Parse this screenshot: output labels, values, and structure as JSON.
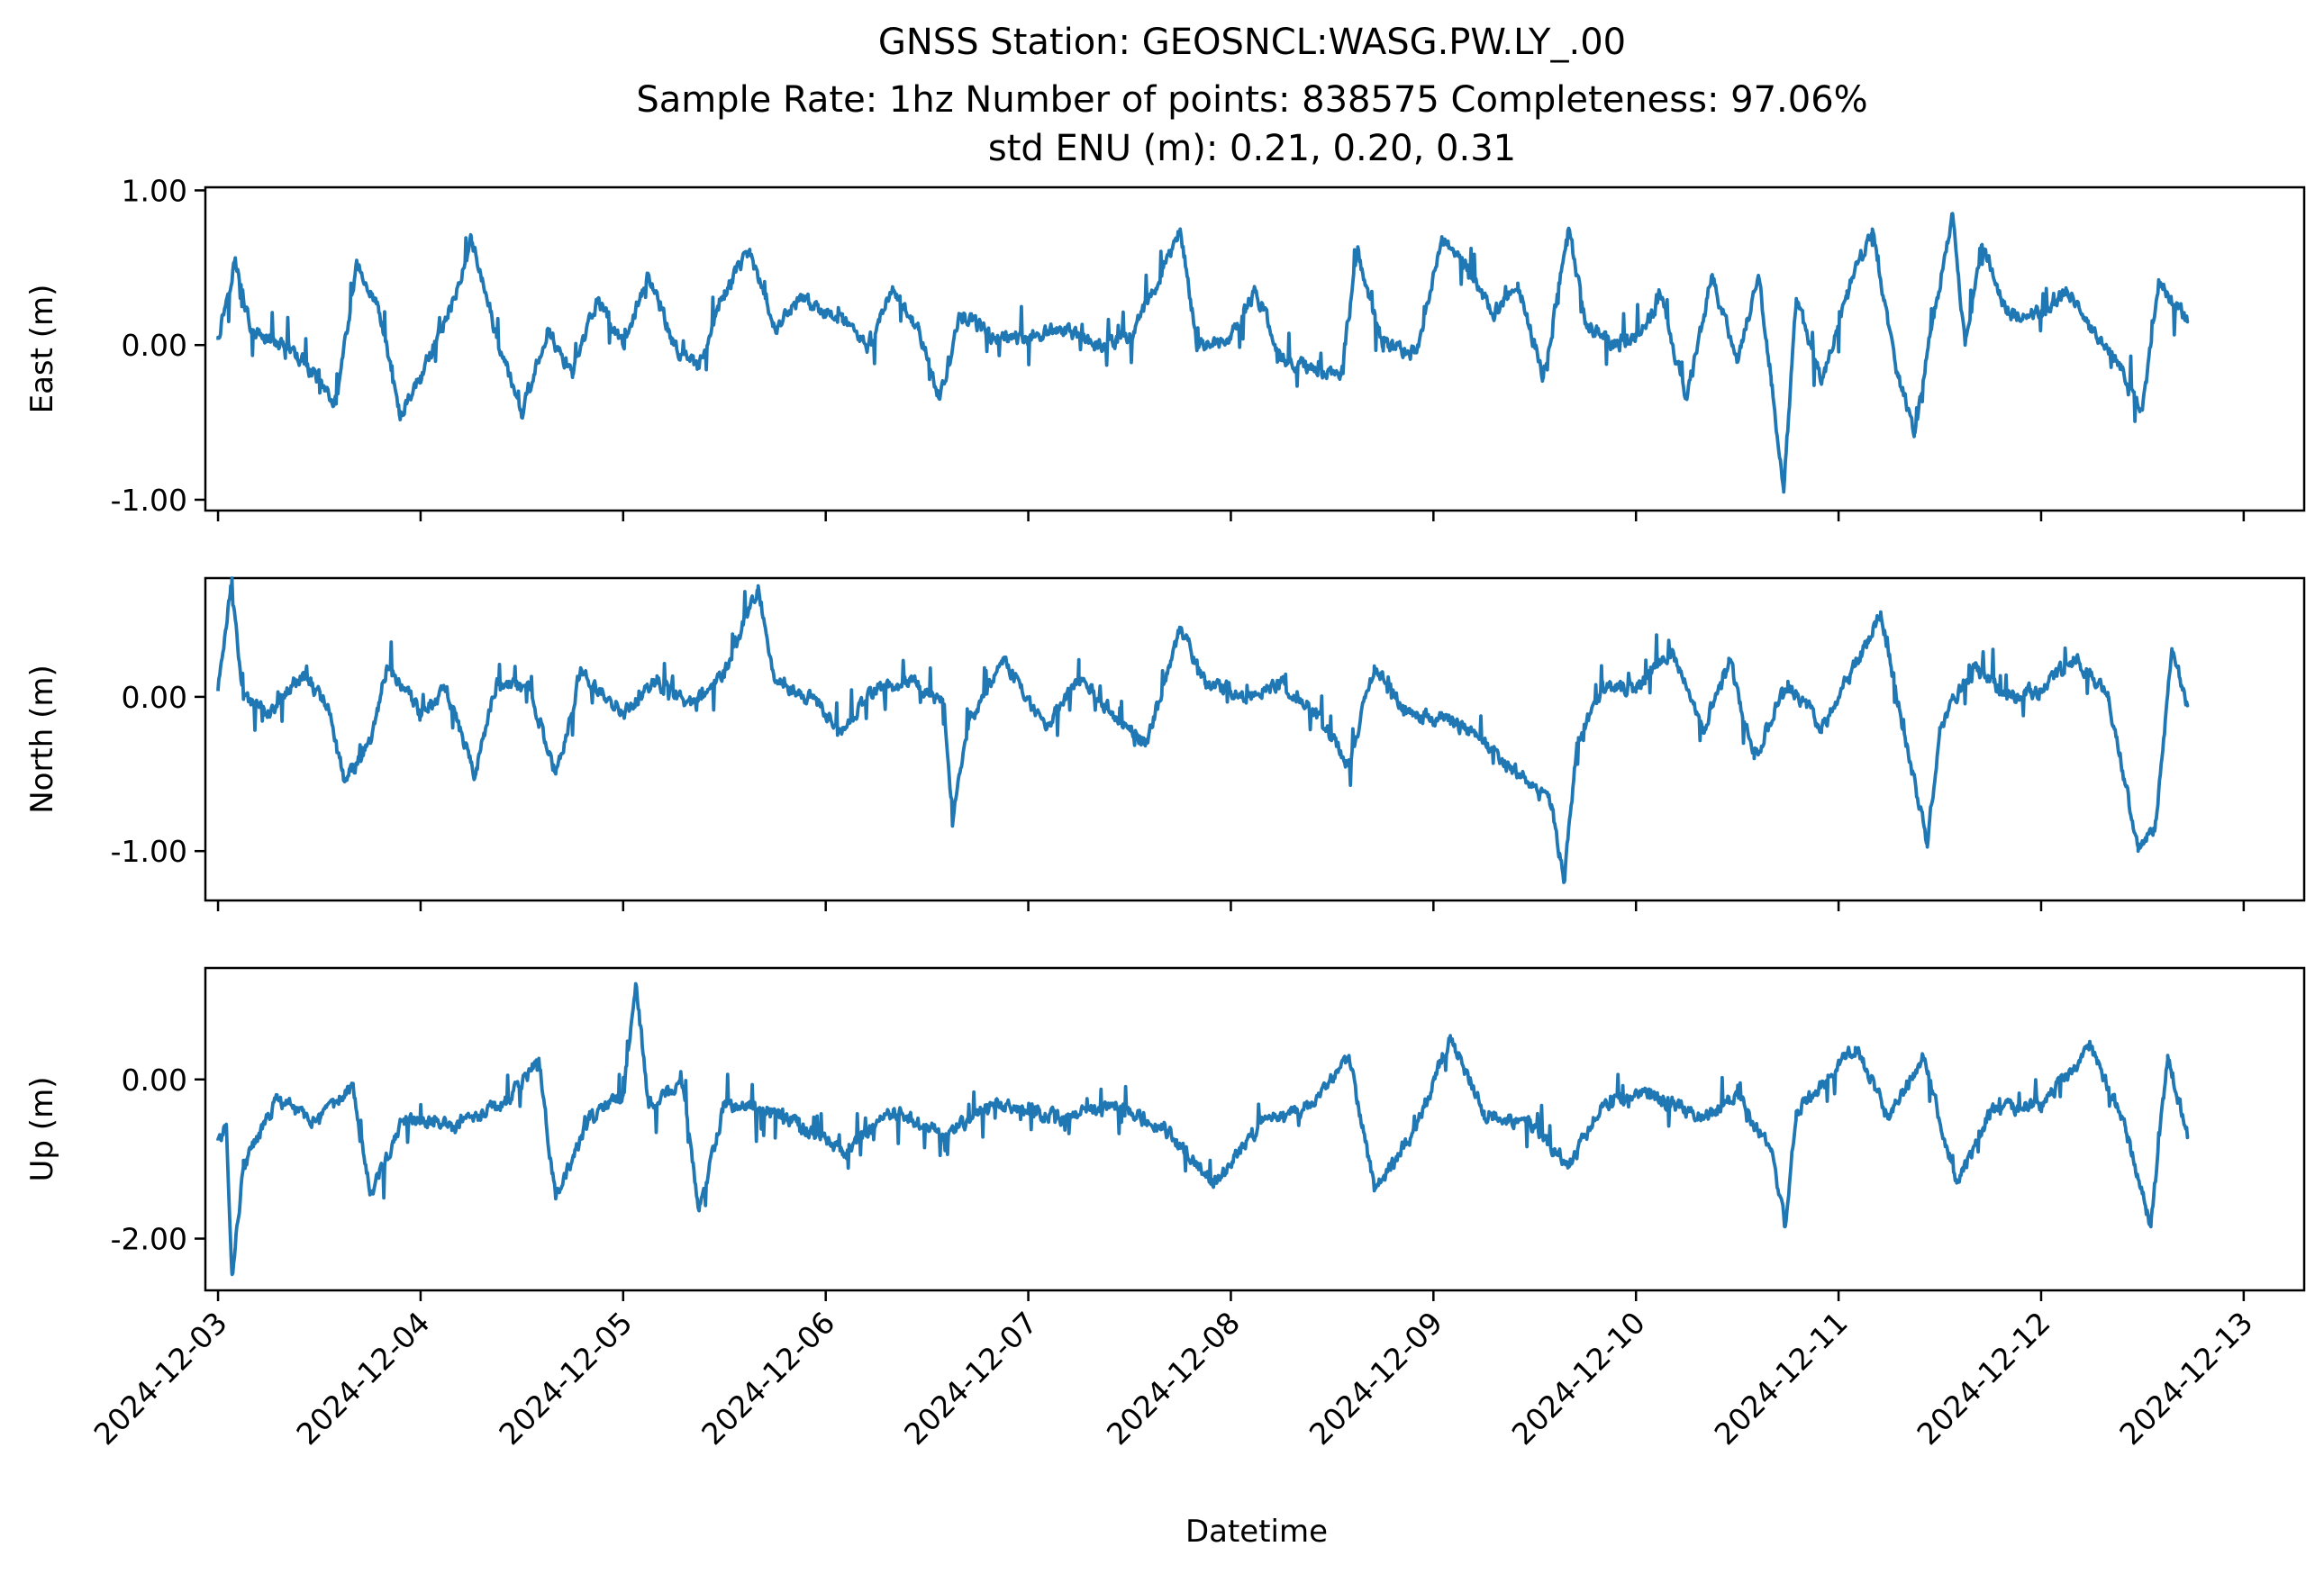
{
  "title_lines": [
    "GNSS Station: GEOSNCL:WASG.PW.LY_.00",
    "Sample Rate: 1hz   Number of points: 838575    Completeness:  97.06%",
    "std ENU (m):  0.21, 0.20, 0.31"
  ],
  "chart_data": {
    "type": "line",
    "line_color": "#1f77b4",
    "xlabel": "Datetime",
    "x_ticks": [
      "2024-12-03",
      "2024-12-04",
      "2024-12-05",
      "2024-12-06",
      "2024-12-07",
      "2024-12-08",
      "2024-12-09",
      "2024-12-10",
      "2024-12-11",
      "2024-12-12",
      "2024-12-13"
    ],
    "x_range": [
      "2024-12-02T22:30",
      "2024-12-13T07:10"
    ],
    "data_span": [
      "2024-12-03T00:00",
      "2024-12-12T17:20"
    ],
    "panels": [
      {
        "name": "east",
        "ylabel": "East (m)",
        "ylim": [
          -1.07,
          1.02
        ],
        "y_ticks": [
          1.0,
          0.0,
          -1.0
        ],
        "y_tick_labels": [
          "1.00",
          "0.00",
          "-1.00"
        ],
        "keypoints": [
          [
            "2024-12-03T00:00",
            0.05
          ],
          [
            "2024-12-03T02:00",
            0.55
          ],
          [
            "2024-12-03T04:00",
            0.08
          ],
          [
            "2024-12-03T08:00",
            0.0
          ],
          [
            "2024-12-03T12:00",
            -0.22
          ],
          [
            "2024-12-03T14:00",
            -0.38
          ],
          [
            "2024-12-03T16:30",
            0.52
          ],
          [
            "2024-12-03T19:00",
            0.25
          ],
          [
            "2024-12-03T21:30",
            -0.45
          ],
          [
            "2024-12-04T00:00",
            -0.2
          ],
          [
            "2024-12-04T04:00",
            0.3
          ],
          [
            "2024-12-04T06:00",
            0.7
          ],
          [
            "2024-12-04T09:00",
            0.05
          ],
          [
            "2024-12-04T12:00",
            -0.45
          ],
          [
            "2024-12-04T15:00",
            0.1
          ],
          [
            "2024-12-04T18:00",
            -0.2
          ],
          [
            "2024-12-04T21:00",
            0.3
          ],
          [
            "2024-12-05T00:00",
            0.0
          ],
          [
            "2024-12-05T03:00",
            0.45
          ],
          [
            "2024-12-05T06:00",
            0.0
          ],
          [
            "2024-12-05T09:00",
            -0.15
          ],
          [
            "2024-12-05T12:00",
            0.35
          ],
          [
            "2024-12-05T15:00",
            0.6
          ],
          [
            "2024-12-05T18:00",
            0.1
          ],
          [
            "2024-12-05T21:00",
            0.3
          ],
          [
            "2024-12-06T02:00",
            0.15
          ],
          [
            "2024-12-06T05:00",
            0.0
          ],
          [
            "2024-12-06T08:00",
            0.35
          ],
          [
            "2024-12-06T11:00",
            0.1
          ],
          [
            "2024-12-06T13:30",
            -0.35
          ],
          [
            "2024-12-06T16:00",
            0.2
          ],
          [
            "2024-12-06T20:00",
            0.05
          ],
          [
            "2024-12-07T00:00",
            0.05
          ],
          [
            "2024-12-07T04:00",
            0.1
          ],
          [
            "2024-12-07T08:00",
            0.0
          ],
          [
            "2024-12-07T12:00",
            0.05
          ],
          [
            "2024-12-07T16:00",
            0.5
          ],
          [
            "2024-12-07T18:00",
            0.75
          ],
          [
            "2024-12-07T20:00",
            0.0
          ],
          [
            "2024-12-08T00:00",
            0.05
          ],
          [
            "2024-12-08T03:00",
            0.35
          ],
          [
            "2024-12-08T06:00",
            -0.1
          ],
          [
            "2024-12-08T10:00",
            -0.15
          ],
          [
            "2024-12-08T13:00",
            -0.2
          ],
          [
            "2024-12-08T15:00",
            0.6
          ],
          [
            "2024-12-08T18:00",
            0.0
          ],
          [
            "2024-12-08T22:00",
            -0.05
          ],
          [
            "2024-12-09T01:00",
            0.7
          ],
          [
            "2024-12-09T04:00",
            0.5
          ],
          [
            "2024-12-09T07:00",
            0.2
          ],
          [
            "2024-12-09T10:00",
            0.4
          ],
          [
            "2024-12-09T13:00",
            -0.2
          ],
          [
            "2024-12-09T16:00",
            0.75
          ],
          [
            "2024-12-09T18:00",
            0.15
          ],
          [
            "2024-12-09T21:00",
            0.0
          ],
          [
            "2024-12-10T00:00",
            0.05
          ],
          [
            "2024-12-10T03:00",
            0.3
          ],
          [
            "2024-12-10T06:00",
            -0.35
          ],
          [
            "2024-12-10T09:00",
            0.45
          ],
          [
            "2024-12-10T12:00",
            -0.1
          ],
          [
            "2024-12-10T14:30",
            0.45
          ],
          [
            "2024-12-10T16:00",
            -0.2
          ],
          [
            "2024-12-10T17:30",
            -0.95
          ],
          [
            "2024-12-10T19:00",
            0.3
          ],
          [
            "2024-12-10T22:00",
            -0.25
          ],
          [
            "2024-12-11T01:00",
            0.35
          ],
          [
            "2024-12-11T04:00",
            0.75
          ],
          [
            "2024-12-11T07:00",
            -0.2
          ],
          [
            "2024-12-11T09:00",
            -0.55
          ],
          [
            "2024-12-11T11:00",
            0.1
          ],
          [
            "2024-12-11T13:30",
            0.85
          ],
          [
            "2024-12-11T15:00",
            0.0
          ],
          [
            "2024-12-11T17:00",
            0.65
          ],
          [
            "2024-12-11T20:00",
            0.2
          ],
          [
            "2024-12-12T00:00",
            0.2
          ],
          [
            "2024-12-12T03:00",
            0.35
          ],
          [
            "2024-12-12T06:00",
            0.1
          ],
          [
            "2024-12-12T09:00",
            -0.1
          ],
          [
            "2024-12-12T12:00",
            -0.42
          ],
          [
            "2024-12-12T14:00",
            0.4
          ],
          [
            "2024-12-12T17:20",
            0.15
          ]
        ]
      },
      {
        "name": "north",
        "ylabel": "North (m)",
        "ylim": [
          -1.32,
          0.77
        ],
        "y_ticks": [
          0.0,
          -1.0
        ],
        "y_tick_labels": [
          "0.00",
          "-1.00"
        ],
        "keypoints": [
          [
            "2024-12-03T00:00",
            0.05
          ],
          [
            "2024-12-03T01:30",
            0.72
          ],
          [
            "2024-12-03T03:00",
            0.0
          ],
          [
            "2024-12-03T06:00",
            -0.1
          ],
          [
            "2024-12-03T10:00",
            0.15
          ],
          [
            "2024-12-03T13:00",
            -0.05
          ],
          [
            "2024-12-03T15:00",
            -0.55
          ],
          [
            "2024-12-03T18:00",
            -0.3
          ],
          [
            "2024-12-03T20:00",
            0.2
          ],
          [
            "2024-12-04T00:00",
            -0.1
          ],
          [
            "2024-12-04T03:00",
            0.05
          ],
          [
            "2024-12-04T06:30",
            -0.5
          ],
          [
            "2024-12-04T09:00",
            0.1
          ],
          [
            "2024-12-04T13:00",
            0.05
          ],
          [
            "2024-12-04T16:00",
            -0.5
          ],
          [
            "2024-12-04T19:00",
            0.15
          ],
          [
            "2024-12-05T00:00",
            -0.1
          ],
          [
            "2024-12-05T04:00",
            0.1
          ],
          [
            "2024-12-05T08:00",
            -0.05
          ],
          [
            "2024-12-05T12:00",
            0.15
          ],
          [
            "2024-12-05T16:00",
            0.72
          ],
          [
            "2024-12-05T18:00",
            0.1
          ],
          [
            "2024-12-05T22:00",
            0.0
          ],
          [
            "2024-12-06T02:00",
            -0.2
          ],
          [
            "2024-12-06T06:00",
            0.05
          ],
          [
            "2024-12-06T10:00",
            0.1
          ],
          [
            "2024-12-06T14:00",
            -0.05
          ],
          [
            "2024-12-06T15:00",
            -0.8
          ],
          [
            "2024-12-06T17:00",
            -0.15
          ],
          [
            "2024-12-06T21:00",
            0.25
          ],
          [
            "2024-12-07T02:00",
            -0.2
          ],
          [
            "2024-12-07T06:00",
            0.1
          ],
          [
            "2024-12-07T10:00",
            -0.1
          ],
          [
            "2024-12-07T14:00",
            -0.3
          ],
          [
            "2024-12-07T18:00",
            0.45
          ],
          [
            "2024-12-07T21:00",
            0.1
          ],
          [
            "2024-12-08T02:00",
            0.0
          ],
          [
            "2024-12-08T06:00",
            0.1
          ],
          [
            "2024-12-08T10:00",
            -0.1
          ],
          [
            "2024-12-08T14:00",
            -0.45
          ],
          [
            "2024-12-08T17:00",
            0.2
          ],
          [
            "2024-12-08T21:00",
            -0.1
          ],
          [
            "2024-12-09T02:00",
            -0.15
          ],
          [
            "2024-12-09T06:00",
            -0.3
          ],
          [
            "2024-12-09T10:00",
            -0.5
          ],
          [
            "2024-12-09T14:00",
            -0.7
          ],
          [
            "2024-12-09T15:30",
            -1.2
          ],
          [
            "2024-12-09T17:00",
            -0.3
          ],
          [
            "2024-12-09T20:00",
            0.05
          ],
          [
            "2024-12-10T00:00",
            0.05
          ],
          [
            "2024-12-10T04:00",
            0.3
          ],
          [
            "2024-12-10T08:00",
            -0.2
          ],
          [
            "2024-12-10T11:00",
            0.25
          ],
          [
            "2024-12-10T14:00",
            -0.4
          ],
          [
            "2024-12-10T18:00",
            0.1
          ],
          [
            "2024-12-10T22:00",
            -0.2
          ],
          [
            "2024-12-11T02:00",
            0.2
          ],
          [
            "2024-12-11T05:00",
            0.55
          ],
          [
            "2024-12-11T08:00",
            -0.3
          ],
          [
            "2024-12-11T10:30",
            -0.95
          ],
          [
            "2024-12-11T12:00",
            -0.2
          ],
          [
            "2024-12-11T16:00",
            0.2
          ],
          [
            "2024-12-11T20:00",
            0.0
          ],
          [
            "2024-12-12T00:00",
            0.05
          ],
          [
            "2024-12-12T04:00",
            0.25
          ],
          [
            "2024-12-12T08:00",
            0.0
          ],
          [
            "2024-12-12T11:30",
            -1.0
          ],
          [
            "2024-12-12T13:30",
            -0.85
          ],
          [
            "2024-12-12T15:30",
            0.3
          ],
          [
            "2024-12-12T17:20",
            -0.05
          ]
        ]
      },
      {
        "name": "up",
        "ylabel": "Up (m)",
        "ylim": [
          -2.65,
          1.4
        ],
        "y_ticks": [
          0.0,
          -2.0
        ],
        "y_tick_labels": [
          "0.00",
          "-2.00"
        ],
        "keypoints": [
          [
            "2024-12-03T00:00",
            -0.75
          ],
          [
            "2024-12-03T01:00",
            -0.6
          ],
          [
            "2024-12-03T01:40",
            -2.45
          ],
          [
            "2024-12-03T03:00",
            -1.1
          ],
          [
            "2024-12-03T07:00",
            -0.25
          ],
          [
            "2024-12-03T12:00",
            -0.55
          ],
          [
            "2024-12-03T16:00",
            -0.05
          ],
          [
            "2024-12-03T18:00",
            -1.45
          ],
          [
            "2024-12-03T22:00",
            -0.5
          ],
          [
            "2024-12-04T04:00",
            -0.6
          ],
          [
            "2024-12-04T10:00",
            -0.3
          ],
          [
            "2024-12-04T14:00",
            0.25
          ],
          [
            "2024-12-04T16:00",
            -1.5
          ],
          [
            "2024-12-04T20:00",
            -0.5
          ],
          [
            "2024-12-05T00:00",
            -0.2
          ],
          [
            "2024-12-05T01:30",
            1.2
          ],
          [
            "2024-12-05T03:00",
            -0.3
          ],
          [
            "2024-12-05T07:00",
            -0.1
          ],
          [
            "2024-12-05T09:00",
            -1.65
          ],
          [
            "2024-12-05T12:00",
            -0.3
          ],
          [
            "2024-12-05T18:00",
            -0.4
          ],
          [
            "2024-12-06T02:00",
            -0.9
          ],
          [
            "2024-12-06T08:00",
            -0.4
          ],
          [
            "2024-12-06T14:00",
            -0.7
          ],
          [
            "2024-12-06T20:00",
            -0.3
          ],
          [
            "2024-12-07T04:00",
            -0.5
          ],
          [
            "2024-12-07T10:00",
            -0.3
          ],
          [
            "2024-12-07T16:00",
            -0.6
          ],
          [
            "2024-12-07T22:00",
            -1.3
          ],
          [
            "2024-12-08T04:00",
            -0.5
          ],
          [
            "2024-12-08T10:00",
            -0.3
          ],
          [
            "2024-12-08T14:00",
            0.3
          ],
          [
            "2024-12-08T17:00",
            -1.4
          ],
          [
            "2024-12-08T22:00",
            -0.6
          ],
          [
            "2024-12-09T02:00",
            0.55
          ],
          [
            "2024-12-09T06:00",
            -0.4
          ],
          [
            "2024-12-09T12:00",
            -0.6
          ],
          [
            "2024-12-09T16:00",
            -1.1
          ],
          [
            "2024-12-09T20:00",
            -0.3
          ],
          [
            "2024-12-10T02:00",
            -0.2
          ],
          [
            "2024-12-10T08:00",
            -0.5
          ],
          [
            "2024-12-10T12:00",
            -0.2
          ],
          [
            "2024-12-10T16:00",
            -0.9
          ],
          [
            "2024-12-10T17:40",
            -1.85
          ],
          [
            "2024-12-10T19:00",
            -0.4
          ],
          [
            "2024-12-11T02:00",
            0.4
          ],
          [
            "2024-12-11T06:00",
            -0.5
          ],
          [
            "2024-12-11T10:00",
            0.3
          ],
          [
            "2024-12-11T14:00",
            -1.3
          ],
          [
            "2024-12-11T18:00",
            -0.4
          ],
          [
            "2024-12-12T00:00",
            -0.3
          ],
          [
            "2024-12-12T06:00",
            0.4
          ],
          [
            "2024-12-12T10:00",
            -0.6
          ],
          [
            "2024-12-12T13:00",
            -1.85
          ],
          [
            "2024-12-12T15:00",
            0.3
          ],
          [
            "2024-12-12T17:20",
            -0.7
          ]
        ]
      }
    ]
  }
}
